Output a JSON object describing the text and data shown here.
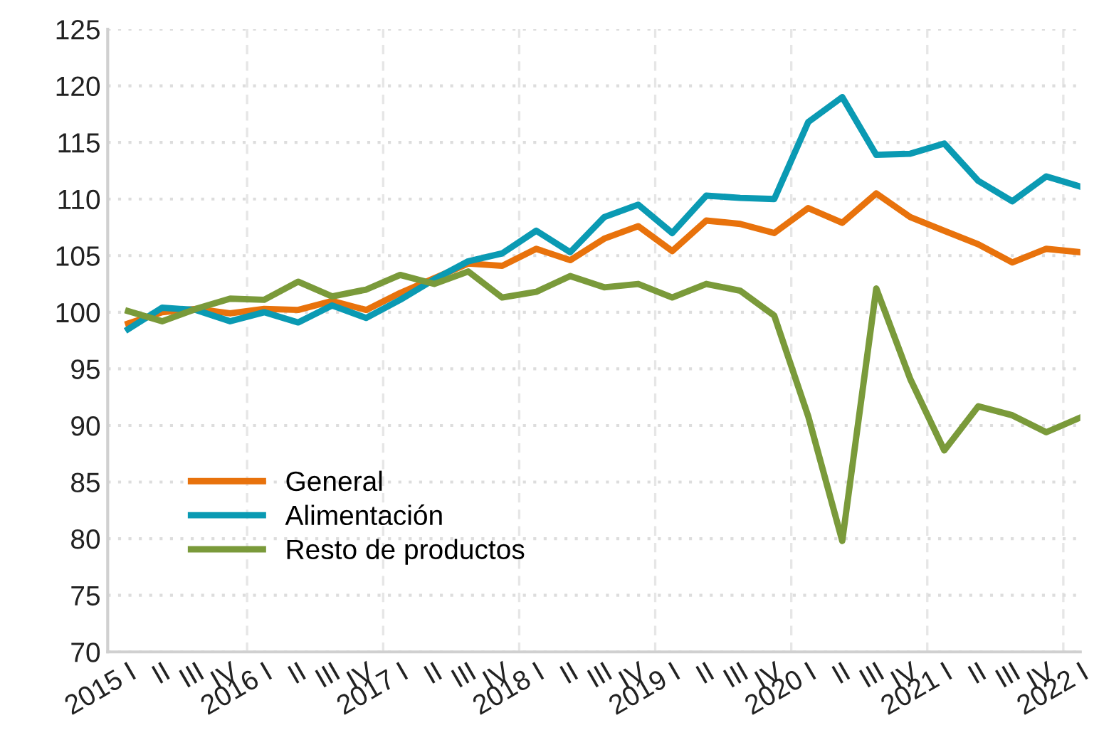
{
  "chart_data": {
    "type": "line",
    "categories": [
      "2015 I",
      "II",
      "III",
      "IV",
      "2016 I",
      "II",
      "III",
      "IV",
      "2017 I",
      "II",
      "III",
      "IV",
      "2018 I",
      "II",
      "III",
      "IV",
      "2019 I",
      "II",
      "III",
      "IV",
      "2020 I",
      "II",
      "III",
      "IV",
      "2021 I",
      "II",
      "III",
      "IV",
      "2022 I"
    ],
    "series": [
      {
        "name": "General",
        "color": "#e8720c",
        "values": [
          99.0,
          100.0,
          100.3,
          99.9,
          100.3,
          100.2,
          101.0,
          100.2,
          101.7,
          103.0,
          104.3,
          104.1,
          105.6,
          104.6,
          106.5,
          107.6,
          105.4,
          108.1,
          107.8,
          107.0,
          109.2,
          107.9,
          110.5,
          108.4,
          107.2,
          106.0,
          104.4,
          105.6,
          105.3
        ]
      },
      {
        "name": "Alimentación",
        "color": "#0a9ab3",
        "values": [
          98.5,
          100.4,
          100.2,
          99.2,
          100.0,
          99.1,
          100.6,
          99.5,
          101.1,
          102.9,
          104.5,
          105.2,
          107.2,
          105.3,
          108.4,
          109.5,
          107.0,
          110.3,
          110.1,
          110.0,
          116.8,
          119.0,
          113.9,
          114.0,
          114.9,
          111.6,
          109.8,
          112.0,
          111.1
        ]
      },
      {
        "name": "Resto de productos",
        "color": "#7a9a3a",
        "values": [
          100.1,
          99.2,
          100.3,
          101.2,
          101.1,
          102.7,
          101.4,
          102.0,
          103.3,
          102.5,
          103.6,
          101.3,
          101.8,
          103.2,
          102.2,
          102.5,
          101.3,
          102.5,
          101.9,
          99.7,
          90.8,
          79.8,
          102.1,
          94.1,
          87.8,
          91.7,
          90.9,
          89.4,
          90.7
        ]
      }
    ],
    "ylim": [
      70,
      125
    ],
    "yticks": [
      70,
      75,
      80,
      85,
      90,
      95,
      100,
      105,
      110,
      115,
      120,
      125
    ],
    "grid": true,
    "legend": "bottom left",
    "marker": "none",
    "line_style": "solid"
  }
}
